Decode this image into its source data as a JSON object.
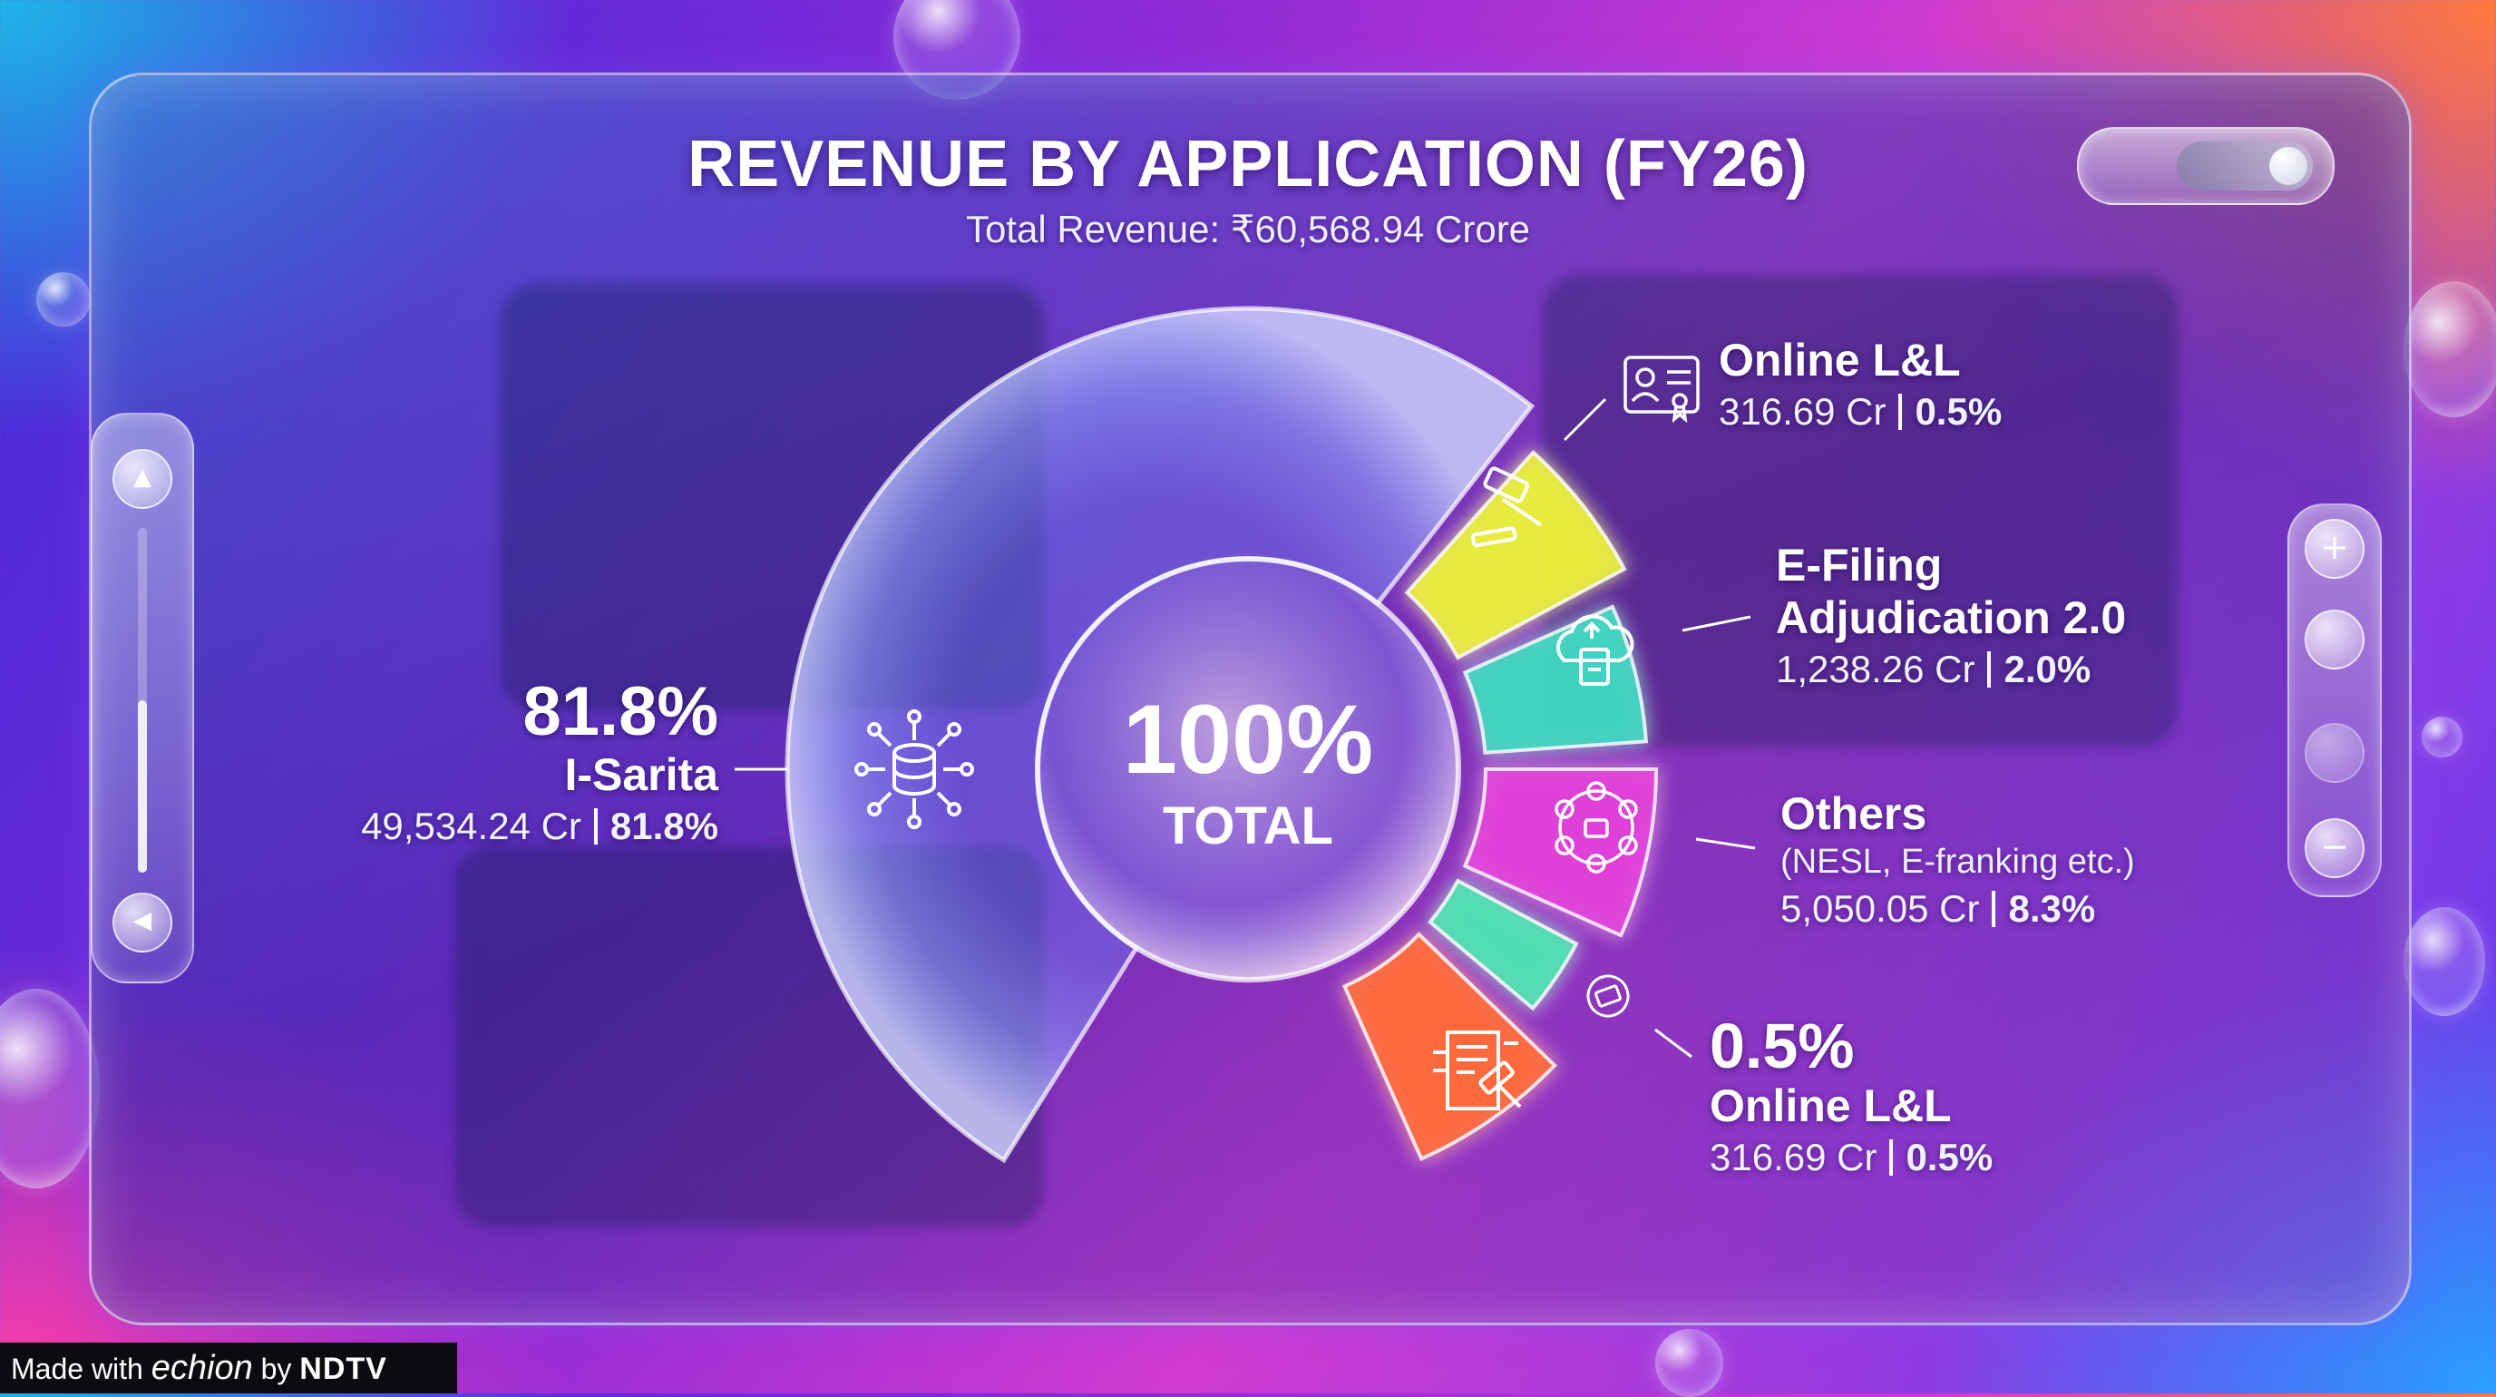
{
  "chart_data": {
    "type": "pie",
    "title": "REVENUE BY APPLICATION (FY26)",
    "subtitle": "Total Revenue: ₹60,568.94 Crore",
    "center_value": "100%",
    "center_label": "TOTAL",
    "slices": [
      {
        "name": "I-Sarita",
        "value": 49534.24,
        "percent": 81.8,
        "pct_label": "81.8%",
        "value_label": "49,534.24 Cr",
        "color": "#7aa8ff",
        "icon": "database-network-icon"
      },
      {
        "name": "Online L&L",
        "value": 316.69,
        "percent": 0.5,
        "pct_label": "0.5%",
        "value_label": "316.69 Cr",
        "color": "#e8ee3a",
        "icon": "gavel-icon"
      },
      {
        "name": "E-Filing Adjudication 2.0",
        "value": 1238.26,
        "percent": 2.0,
        "pct_label": "2.0%",
        "value_label": "1,238.26 Cr",
        "color": "#3fd6c0",
        "icon": "cloud-upload-document-icon"
      },
      {
        "name": "Others",
        "note": "(NESL, E-franking etc.)",
        "value": 5050.05,
        "percent": 8.3,
        "pct_label": "8.3%",
        "value_label": "5,050.05 Cr",
        "color": "#e040d8",
        "icon": "network-people-icon"
      },
      {
        "name": "Online L&L",
        "value": 316.69,
        "percent": 0.5,
        "pct_label": "0.5%",
        "value_label": "316.69 Cr",
        "color": "#4fe0b0",
        "icon": "monitor-icon"
      },
      {
        "name": "",
        "value": null,
        "percent": null,
        "color": "#ff6a3a",
        "icon": "document-gavel-icon"
      }
    ],
    "legend": "none"
  },
  "footer": {
    "made_with": "Made with",
    "brand": "echion",
    "by": "by",
    "partner": "NDTV"
  },
  "controls": {
    "zoom_in": "+",
    "zoom_out": "−",
    "scroll_up": "▲",
    "scroll_left": "◀"
  },
  "icons": [
    "document-certificate-icon"
  ]
}
